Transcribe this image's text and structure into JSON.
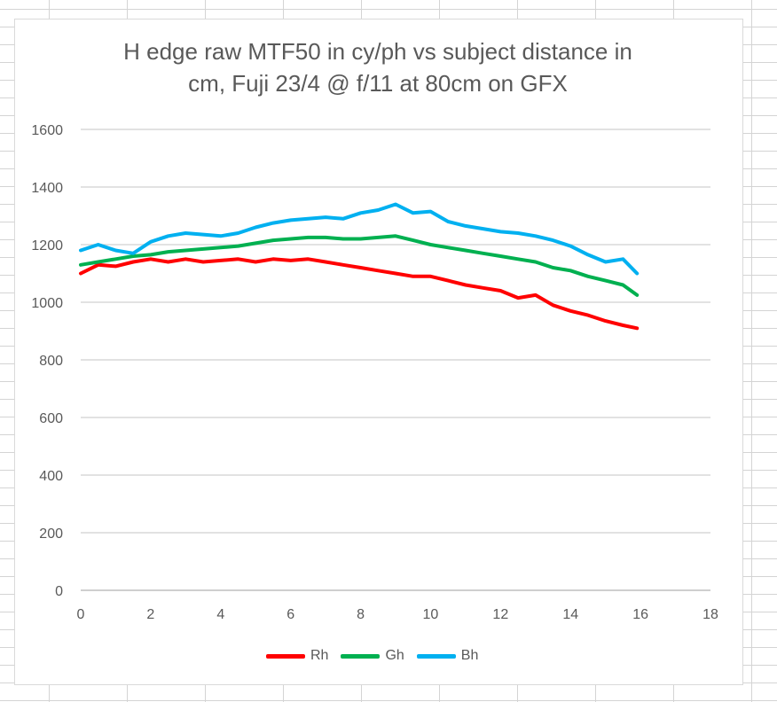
{
  "chart_data": {
    "type": "line",
    "title": "H edge raw MTF50 in cy/ph vs subject distance in\ncm, Fuji 23/4 @ f/11 at 80cm on GFX",
    "xlabel": "",
    "ylabel": "",
    "xlim": [
      0,
      18
    ],
    "ylim": [
      0,
      1600
    ],
    "x_ticks": [
      0,
      2,
      4,
      6,
      8,
      10,
      12,
      14,
      16,
      18
    ],
    "y_ticks": [
      0,
      200,
      400,
      600,
      800,
      1000,
      1200,
      1400,
      1600
    ],
    "grid": "horizontal",
    "legend_position": "bottom",
    "x": [
      0,
      0.5,
      1,
      1.5,
      2,
      2.5,
      3,
      3.5,
      4,
      4.5,
      5,
      5.5,
      6,
      6.5,
      7,
      7.5,
      8,
      8.5,
      9,
      9.5,
      10,
      10.5,
      11,
      11.5,
      12,
      12.5,
      13,
      13.5,
      14,
      14.5,
      15,
      15.5,
      15.9
    ],
    "series": [
      {
        "name": "Rh",
        "color": "#ff0000",
        "values": [
          1100,
          1130,
          1125,
          1140,
          1150,
          1140,
          1150,
          1140,
          1145,
          1150,
          1140,
          1150,
          1145,
          1150,
          1140,
          1130,
          1120,
          1110,
          1100,
          1090,
          1090,
          1075,
          1060,
          1050,
          1040,
          1015,
          1025,
          990,
          970,
          955,
          935,
          920,
          910
        ]
      },
      {
        "name": "Gh",
        "color": "#00b050",
        "values": [
          1130,
          1140,
          1150,
          1160,
          1165,
          1175,
          1180,
          1185,
          1190,
          1195,
          1205,
          1215,
          1220,
          1225,
          1225,
          1220,
          1220,
          1225,
          1230,
          1215,
          1200,
          1190,
          1180,
          1170,
          1160,
          1150,
          1140,
          1120,
          1110,
          1090,
          1075,
          1060,
          1025
        ]
      },
      {
        "name": "Bh",
        "color": "#00b0f0",
        "values": [
          1180,
          1200,
          1180,
          1170,
          1210,
          1230,
          1240,
          1235,
          1230,
          1240,
          1260,
          1275,
          1285,
          1290,
          1295,
          1290,
          1310,
          1320,
          1340,
          1310,
          1315,
          1280,
          1265,
          1255,
          1245,
          1240,
          1230,
          1215,
          1195,
          1165,
          1140,
          1150,
          1100
        ]
      }
    ]
  }
}
